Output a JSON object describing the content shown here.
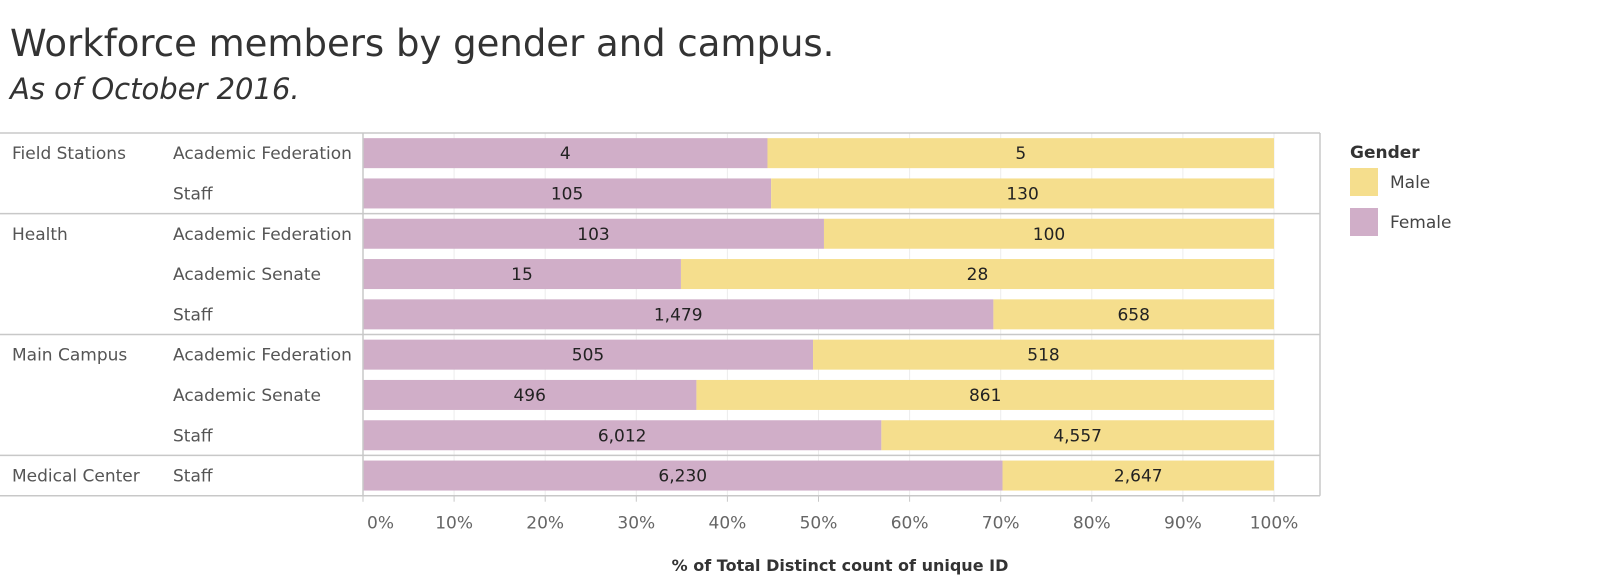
{
  "chart_data": {
    "type": "bar",
    "orientation": "horizontal",
    "stacked": "percent",
    "title": "Workforce members by gender and campus.",
    "subtitle": "As of October 2016.",
    "xlabel": "% of Total Distinct count of unique ID",
    "xlim": [
      0,
      100
    ],
    "x_ticks": [
      "0%",
      "10%",
      "20%",
      "30%",
      "40%",
      "50%",
      "60%",
      "70%",
      "80%",
      "90%",
      "100%"
    ],
    "legend": {
      "title": "Gender",
      "position": "right",
      "entries": [
        {
          "name": "Male",
          "color": "#f5de8d"
        },
        {
          "name": "Female",
          "color": "#d0aec8"
        }
      ]
    },
    "groups": [
      {
        "campus": "Field Stations",
        "rows": [
          {
            "category": "Academic Federation",
            "female": 4,
            "male": 5,
            "female_label": "4",
            "male_label": "5",
            "female_pct": 44.4
          },
          {
            "category": "Staff",
            "female": 105,
            "male": 130,
            "female_label": "105",
            "male_label": "130",
            "female_pct": 44.8
          }
        ]
      },
      {
        "campus": "Health",
        "rows": [
          {
            "category": "Academic Federation",
            "female": 103,
            "male": 100,
            "female_label": "103",
            "male_label": "100",
            "female_pct": 50.6
          },
          {
            "category": "Academic Senate",
            "female": 15,
            "male": 28,
            "female_label": "15",
            "male_label": "28",
            "female_pct": 34.9
          },
          {
            "category": "Staff",
            "female": 1479,
            "male": 658,
            "female_label": "1,479",
            "male_label": "658",
            "female_pct": 69.2
          }
        ]
      },
      {
        "campus": "Main Campus",
        "rows": [
          {
            "category": "Academic Federation",
            "female": 505,
            "male": 518,
            "female_label": "505",
            "male_label": "518",
            "female_pct": 49.4
          },
          {
            "category": "Academic Senate",
            "female": 496,
            "male": 861,
            "female_label": "496",
            "male_label": "861",
            "female_pct": 36.6
          },
          {
            "category": "Staff",
            "female": 6012,
            "male": 4557,
            "female_label": "6,012",
            "male_label": "4,557",
            "female_pct": 56.9
          }
        ]
      },
      {
        "campus": "Medical Center",
        "rows": [
          {
            "category": "Staff",
            "female": 6230,
            "male": 2647,
            "female_label": "6,230",
            "male_label": "2,647",
            "female_pct": 70.2
          }
        ]
      }
    ]
  }
}
